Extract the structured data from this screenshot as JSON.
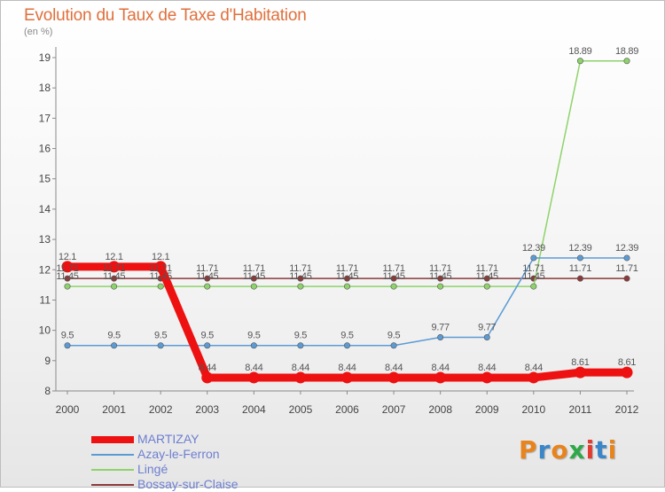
{
  "title": "Evolution du Taux de Taxe d'Habitation",
  "unit_label": "(en %)",
  "logo": {
    "text": "Proxiti",
    "letter_colors": [
      "#e8841e",
      "#3a86c8",
      "#e8841e",
      "#2fa84a",
      "#e23b30",
      "#3a86c8",
      "#e8841e"
    ]
  },
  "colors": {
    "title": "#e0703c",
    "axis": "#8a8a8a",
    "tick_text": "#444444",
    "label_text": "#555555",
    "legend_text": "#6d7fd0"
  },
  "chart_data": {
    "type": "line",
    "x": [
      2000,
      2001,
      2002,
      2003,
      2004,
      2005,
      2006,
      2007,
      2008,
      2009,
      2010,
      2011,
      2012
    ],
    "ylim": [
      8,
      19
    ],
    "yticks": [
      8,
      9,
      10,
      11,
      12,
      13,
      14,
      15,
      16,
      17,
      18,
      19
    ],
    "grid": false,
    "legend_position": "bottom-left",
    "series": [
      {
        "name": "MARTIZAY",
        "color": "#ee1111",
        "values": [
          12.1,
          12.1,
          12.1,
          8.44,
          8.44,
          8.44,
          8.44,
          8.44,
          8.44,
          8.44,
          8.44,
          8.61,
          8.61
        ],
        "labels": [
          "12.1",
          "12.1",
          "12.1",
          "8.44",
          "8.44",
          "8.44",
          "8.44",
          "8.44",
          "8.44",
          "8.44",
          "8.44",
          "8.61",
          "8.61"
        ]
      },
      {
        "name": "Azay-le-Ferron",
        "color": "#5b9bd5",
        "values": [
          9.5,
          9.5,
          9.5,
          9.5,
          9.5,
          9.5,
          9.5,
          9.5,
          9.77,
          9.77,
          12.39,
          12.39,
          12.39
        ],
        "labels": [
          "9.5",
          "9.5",
          "9.5",
          "9.5",
          "9.5",
          "9.5",
          "9.5",
          "9.5",
          "9.77",
          "9.77",
          "12.39",
          "12.39",
          "12.39"
        ]
      },
      {
        "name": "Lingé",
        "color": "#8ed36a",
        "values": [
          11.45,
          11.45,
          11.45,
          11.45,
          11.45,
          11.45,
          11.45,
          11.45,
          11.45,
          11.45,
          11.45,
          18.89,
          18.89
        ],
        "labels": [
          "11.45",
          "11.45",
          "11.45",
          "11.45",
          "11.45",
          "11.45",
          "11.45",
          "11.45",
          "11.45",
          "11.45",
          "11.45",
          "18.89",
          "18.89"
        ]
      },
      {
        "name": "Bossay-sur-Claise",
        "color": "#8b3a3a",
        "values": [
          11.71,
          11.71,
          11.71,
          11.71,
          11.71,
          11.71,
          11.71,
          11.71,
          11.71,
          11.71,
          11.71,
          11.71,
          11.71
        ],
        "labels": [
          "11.71",
          "11.71",
          "11.71",
          "11.71",
          "11.71",
          "11.71",
          "11.71",
          "11.71",
          "11.71",
          "11.71",
          "11.71",
          "11.71",
          "11.71"
        ]
      }
    ]
  }
}
